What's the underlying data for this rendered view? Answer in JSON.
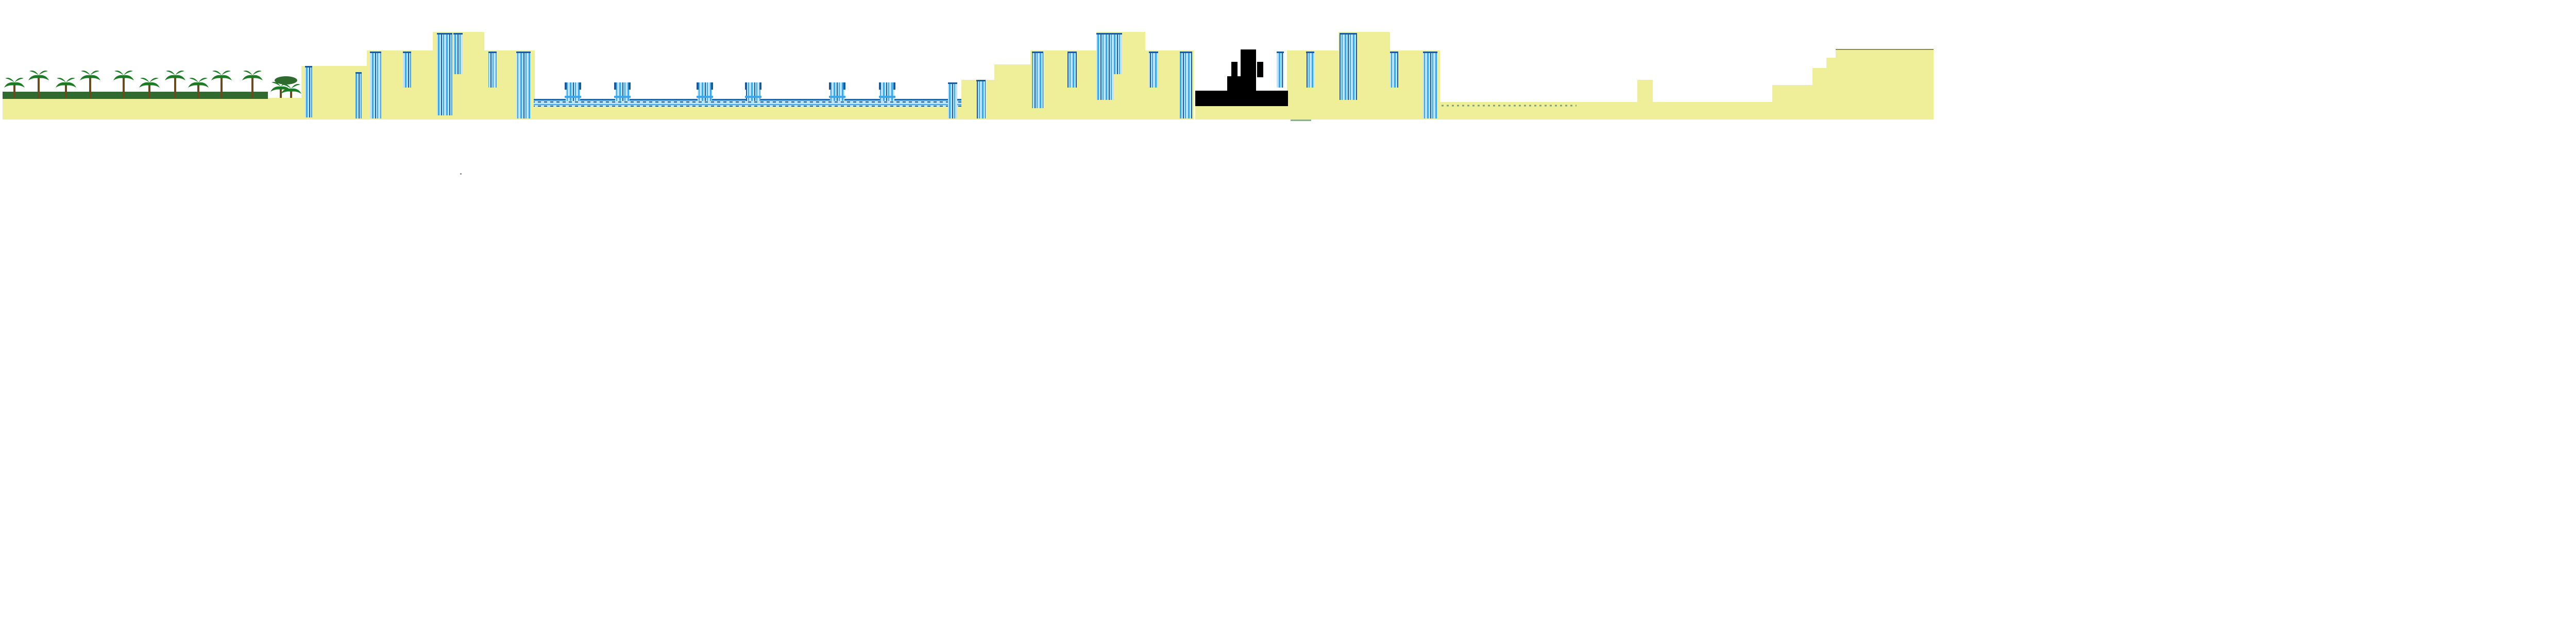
{
  "level": {
    "colors": {
      "sand": "#efef99",
      "water": "#3da6e8",
      "water_light": "#bfe4f7",
      "water_dark": "#1a5a9a",
      "palm_leaf": "#1d7a25",
      "palm_trunk": "#6b4a1e",
      "grass": "#2f6b2f",
      "void": "#000000",
      "background": "#ffffff"
    },
    "scenery": {
      "palm_tree_count": 12,
      "fountain_count": 6,
      "waterfall_count": 22
    },
    "icons": [
      "palm-tree-icon",
      "fountain-icon",
      "waterfall-icon",
      "bush-icon"
    ]
  }
}
